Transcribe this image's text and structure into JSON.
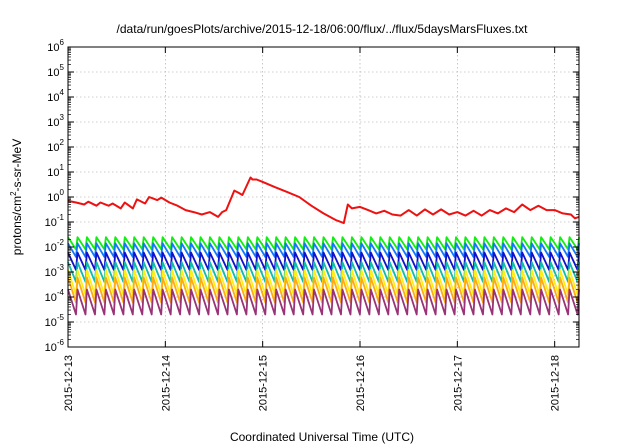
{
  "chart_data": {
    "type": "line",
    "title": "/data/run/goesPlots/archive/2015-12-18/06:00/flux/../flux/5daysMarsFluxes.txt",
    "xlabel": "Coordinated Universal Time (UTC)",
    "ylabel": {
      "prefix": "protons/cm",
      "sup": "2",
      "suffix": "-s-sr-MeV"
    },
    "yscale": "log",
    "ylim": [
      1e-06,
      1000000.0
    ],
    "y_ticks": [
      {
        "base": "10",
        "exp": "-6",
        "value": 1e-06
      },
      {
        "base": "10",
        "exp": "-5",
        "value": 1e-05
      },
      {
        "base": "10",
        "exp": "-4",
        "value": 0.0001
      },
      {
        "base": "10",
        "exp": "-3",
        "value": 0.001
      },
      {
        "base": "10",
        "exp": "-2",
        "value": 0.01
      },
      {
        "base": "10",
        "exp": "-1",
        "value": 0.1
      },
      {
        "base": "10",
        "exp": "0",
        "value": 1
      },
      {
        "base": "10",
        "exp": "1",
        "value": 10
      },
      {
        "base": "10",
        "exp": "2",
        "value": 100
      },
      {
        "base": "10",
        "exp": "3",
        "value": 1000
      },
      {
        "base": "10",
        "exp": "4",
        "value": 10000
      },
      {
        "base": "10",
        "exp": "5",
        "value": 100000
      },
      {
        "base": "10",
        "exp": "6",
        "value": 1000000
      }
    ],
    "x_ticks": [
      "2015-12-13",
      "2015-12-14",
      "2015-12-15",
      "2015-12-16",
      "2015-12-17",
      "2015-12-18"
    ],
    "xlim": [
      "2015-12-13",
      "2015-12-18T06:00"
    ],
    "grid": true,
    "legend": "none",
    "series": [
      {
        "color": "#ee1111",
        "x": [
          "2015-12-13T00:00",
          "2015-12-13T02:00",
          "2015-12-13T04:00",
          "2015-12-13T05:00",
          "2015-12-13T07:00",
          "2015-12-13T08:00",
          "2015-12-13T10:00",
          "2015-12-13T11:00",
          "2015-12-13T13:00",
          "2015-12-13T14:00",
          "2015-12-13T16:00",
          "2015-12-13T17:00",
          "2015-12-13T19:00",
          "2015-12-13T20:00",
          "2015-12-13T22:00",
          "2015-12-13T23:00",
          "2015-12-14T01:00",
          "2015-12-14T03:00",
          "2015-12-14T05:00",
          "2015-12-14T07:00",
          "2015-12-14T09:00",
          "2015-12-14T11:00",
          "2015-12-14T13:00",
          "2015-12-14T14:00",
          "2015-12-14T15:00",
          "2015-12-14T17:00",
          "2015-12-14T18:00",
          "2015-12-14T19:00",
          "2015-12-14T21:00",
          "2015-12-14T21:30",
          "2015-12-14T22:30",
          "2015-12-15T00:00",
          "2015-12-15T03:00",
          "2015-12-15T06:00",
          "2015-12-15T09:00",
          "2015-12-15T12:00",
          "2015-12-15T15:00",
          "2015-12-15T18:00",
          "2015-12-15T20:00",
          "2015-12-15T21:00",
          "2015-12-15T22:00",
          "2015-12-16T00:00",
          "2015-12-16T02:00",
          "2015-12-16T04:00",
          "2015-12-16T06:00",
          "2015-12-16T08:00",
          "2015-12-16T10:00",
          "2015-12-16T12:00",
          "2015-12-16T14:00",
          "2015-12-16T16:00",
          "2015-12-16T18:00",
          "2015-12-16T20:00",
          "2015-12-16T22:00",
          "2015-12-17T00:00",
          "2015-12-17T02:00",
          "2015-12-17T04:00",
          "2015-12-17T06:00",
          "2015-12-17T08:00",
          "2015-12-17T10:00",
          "2015-12-17T12:00",
          "2015-12-17T14:00",
          "2015-12-17T16:00",
          "2015-12-17T18:00",
          "2015-12-17T20:00",
          "2015-12-17T22:00",
          "2015-12-18T00:00",
          "2015-12-18T02:00",
          "2015-12-18T04:00",
          "2015-12-18T05:00",
          "2015-12-18T06:00"
        ],
        "y": [
          0.7,
          0.6,
          0.5,
          0.65,
          0.45,
          0.6,
          0.45,
          0.55,
          0.35,
          0.6,
          0.35,
          0.8,
          0.55,
          1.0,
          0.75,
          0.95,
          0.6,
          0.45,
          0.3,
          0.25,
          0.2,
          0.25,
          0.16,
          0.25,
          0.3,
          1.8,
          1.5,
          1.2,
          6.0,
          5.0,
          5.0,
          4.0,
          2.5,
          1.6,
          1.0,
          0.45,
          0.22,
          0.12,
          0.09,
          0.5,
          0.35,
          0.4,
          0.3,
          0.22,
          0.28,
          0.2,
          0.18,
          0.3,
          0.18,
          0.32,
          0.2,
          0.32,
          0.2,
          0.25,
          0.18,
          0.28,
          0.18,
          0.3,
          0.22,
          0.35,
          0.25,
          0.5,
          0.3,
          0.45,
          0.3,
          0.3,
          0.22,
          0.2,
          0.14,
          0.16
        ]
      }
    ],
    "sawtooth_series": [
      {
        "color": "#11ee11",
        "peak": 0.025,
        "trough": 0.008,
        "x_start": "2015-12-13T00:00",
        "x_end": "2015-12-18T06:00",
        "cycles": 54
      },
      {
        "color": "#1177ff",
        "peak": 0.014,
        "trough": 0.004,
        "x_start": "2015-12-13T00:00",
        "x_end": "2015-12-18T06:00",
        "cycles": 54
      },
      {
        "color": "#1111cc",
        "peak": 0.006,
        "trough": 0.0012,
        "x_start": "2015-12-13T00:00",
        "x_end": "2015-12-18T06:00",
        "cycles": 54
      },
      {
        "color": "#11bbaa",
        "peak": 0.0025,
        "trough": 0.0004,
        "x_start": "2015-12-13T00:00",
        "x_end": "2015-12-18T06:00",
        "cycles": 54
      },
      {
        "color": "#ffee11",
        "peak": 0.0012,
        "trough": 0.00012,
        "x_start": "2015-12-13T00:00",
        "x_end": "2015-12-18T06:00",
        "cycles": 54
      },
      {
        "color": "#ffaa11",
        "peak": 0.0006,
        "trough": 6e-05,
        "x_start": "2015-12-13T00:00",
        "x_end": "2015-12-18T06:00",
        "cycles": 54
      },
      {
        "color": "#993377",
        "peak": 0.0002,
        "trough": 2e-05,
        "x_start": "2015-12-13T00:00",
        "x_end": "2015-12-18T06:00",
        "cycles": 54
      }
    ]
  }
}
